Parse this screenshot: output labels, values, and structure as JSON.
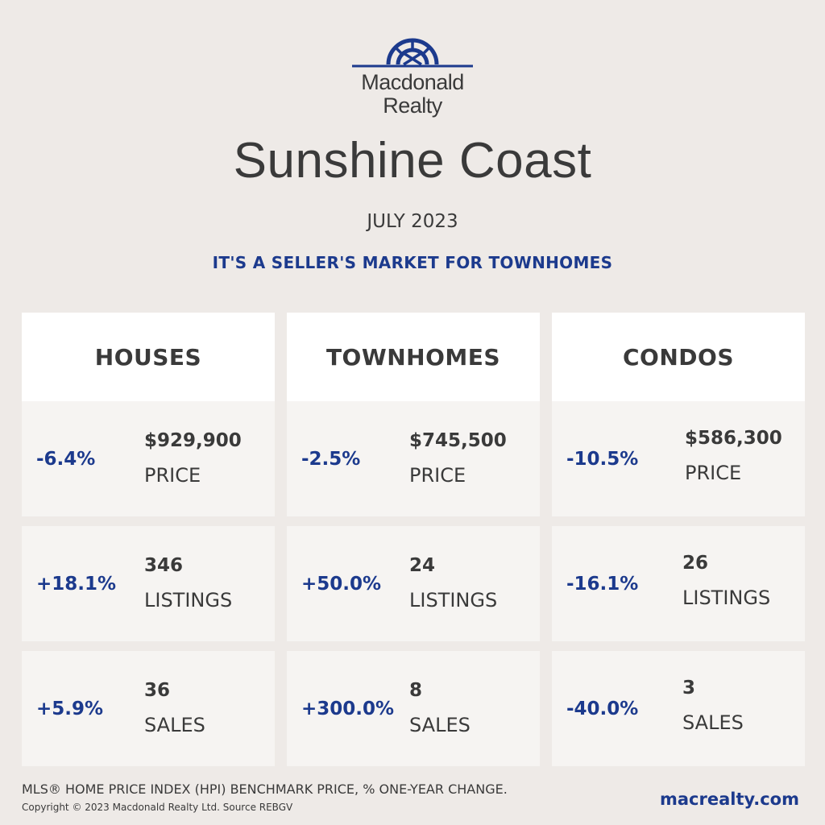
{
  "brand": {
    "line1": "Macdonald",
    "line2": "Realty",
    "color": "#1c3a8d"
  },
  "region": "Sunshine Coast",
  "date": "JULY 2023",
  "headline": "IT'S A SELLER'S MARKET FOR TOWNHOMES",
  "columns": [
    {
      "title": "HOUSES",
      "price": {
        "pct": "-6.4%",
        "value": "$929,900",
        "label": "PRICE"
      },
      "listings": {
        "pct": "+18.1%",
        "value": "346",
        "label": "LISTINGS"
      },
      "sales": {
        "pct": "+5.9%",
        "value": "36",
        "label": "SALES"
      }
    },
    {
      "title": "TOWNHOMES",
      "price": {
        "pct": "-2.5%",
        "value": "$745,500",
        "label": "PRICE"
      },
      "listings": {
        "pct": "+50.0%",
        "value": "24",
        "label": "LISTINGS"
      },
      "sales": {
        "pct": "+300.0%",
        "value": "8",
        "label": "SALES"
      }
    },
    {
      "title": "CONDOS",
      "price": {
        "pct": "-10.5%",
        "value": "$586,300",
        "label": "PRICE"
      },
      "listings": {
        "pct": "-16.1%",
        "value": "26",
        "label": "LISTINGS"
      },
      "sales": {
        "pct": "-40.0%",
        "value": "3",
        "label": "SALES"
      }
    }
  ],
  "footer": {
    "note": "MLS® HOME PRICE INDEX (HPI) BENCHMARK PRICE, % ONE-YEAR CHANGE.",
    "copyright": "Copyright © 2023 Macdonald Realty Ltd. Source REBGV",
    "site": "macrealty.com"
  }
}
